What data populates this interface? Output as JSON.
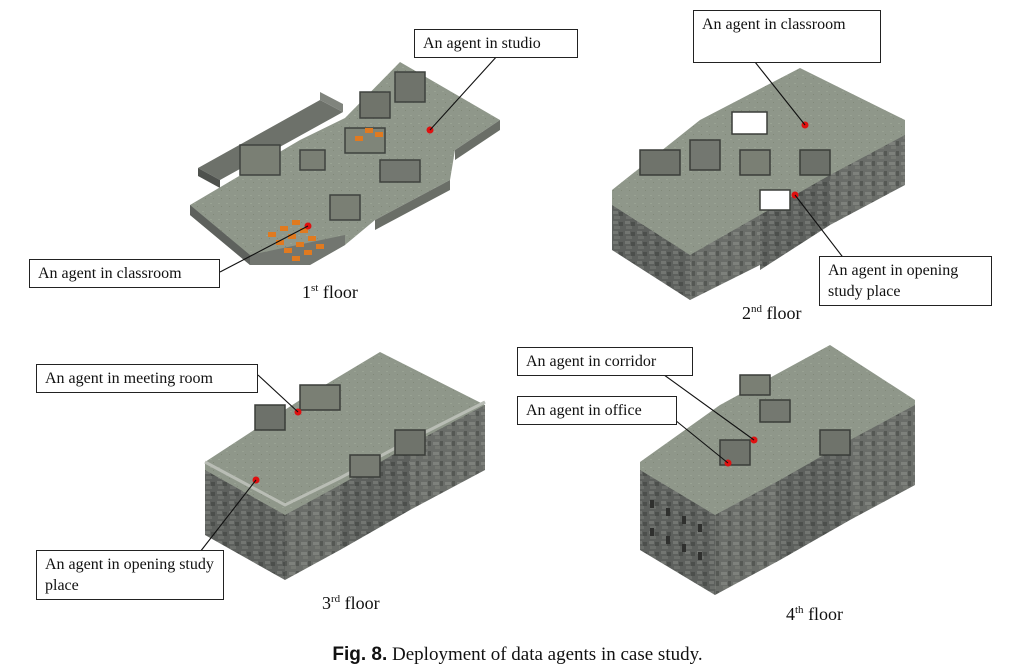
{
  "figure": {
    "caption_label": "Fig. 8.",
    "caption_text": "Deployment of data agents in case study."
  },
  "floors": [
    {
      "ordinal": "1",
      "suffix": "st",
      "word": "floor",
      "callouts": [
        "An agent in studio",
        "An agent in classroom"
      ]
    },
    {
      "ordinal": "2",
      "suffix": "nd",
      "word": "floor",
      "callouts": [
        "An agent in classroom",
        "An agent in opening study place"
      ]
    },
    {
      "ordinal": "3",
      "suffix": "rd",
      "word": "floor",
      "callouts": [
        "An agent in meeting room",
        "An agent in opening study place"
      ]
    },
    {
      "ordinal": "4",
      "suffix": "th",
      "word": "floor",
      "callouts": [
        "An agent in corridor",
        "An agent in office"
      ]
    }
  ],
  "colors": {
    "floor_top": "#8e9787",
    "wall_side": "#6b6f68",
    "stone_side": "#5f6260",
    "agent_dot": "#e01010",
    "desks": "#e07a20"
  }
}
